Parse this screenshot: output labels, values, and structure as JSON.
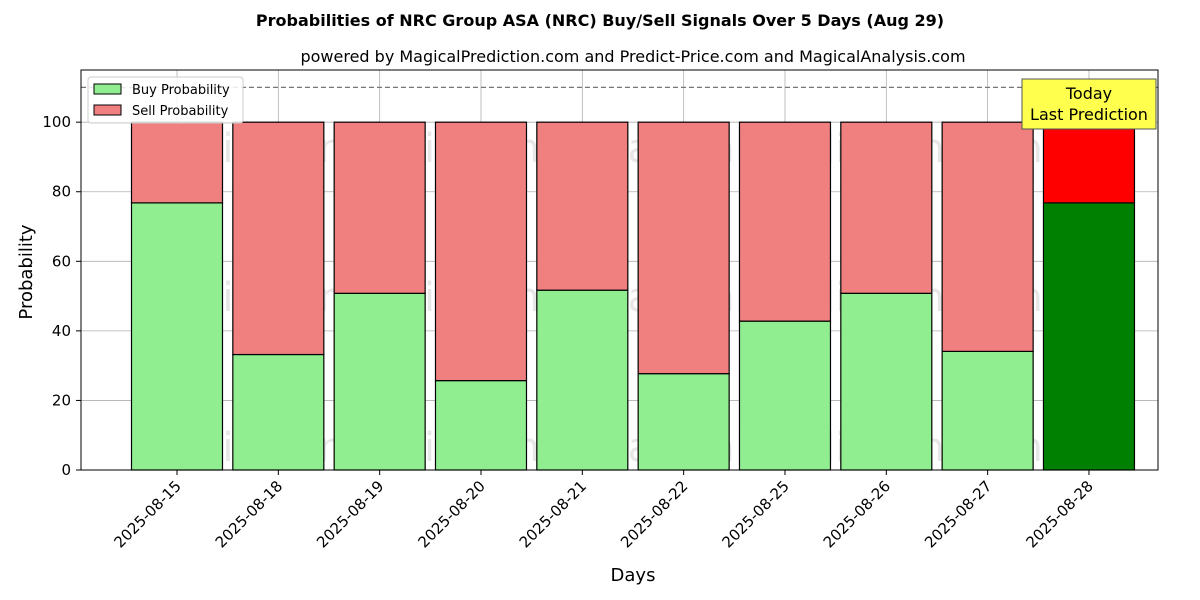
{
  "chart_data": {
    "type": "bar",
    "stacked": true,
    "title": "Probabilities of NRC Group ASA (NRC) Buy/Sell Signals Over 5 Days (Aug 29)",
    "subtitle": "powered by MagicalPrediction.com and Predict-Price.com and MagicalAnalysis.com",
    "xlabel": "Days",
    "ylabel": "Probability",
    "ylim": [
      0,
      115
    ],
    "yticks": [
      0,
      20,
      40,
      60,
      80,
      100
    ],
    "reference_line": 110,
    "grid": true,
    "legend_position": "top-left",
    "categories": [
      "2025-08-15",
      "2025-08-18",
      "2025-08-19",
      "2025-08-20",
      "2025-08-21",
      "2025-08-22",
      "2025-08-25",
      "2025-08-26",
      "2025-08-27",
      "2025-08-28"
    ],
    "series": [
      {
        "name": "Buy Probability",
        "values": [
          76.8,
          33.2,
          50.8,
          25.7,
          51.7,
          27.7,
          42.8,
          50.8,
          34.1,
          76.8
        ],
        "color": "#90ee90",
        "highlight_color": "#008000"
      },
      {
        "name": "Sell Probability",
        "values": [
          23.2,
          66.8,
          49.2,
          74.3,
          48.3,
          72.3,
          57.2,
          49.2,
          65.9,
          23.2
        ],
        "color": "#f08080",
        "highlight_color": "#ff0000"
      }
    ],
    "highlight_index": 9,
    "annotation": {
      "lines": [
        "Today",
        "Last Prediction"
      ],
      "color": "#ffff4d"
    },
    "watermarks": [
      "MagicalAnalysis.com",
      "MagicalPrediction.com"
    ]
  }
}
